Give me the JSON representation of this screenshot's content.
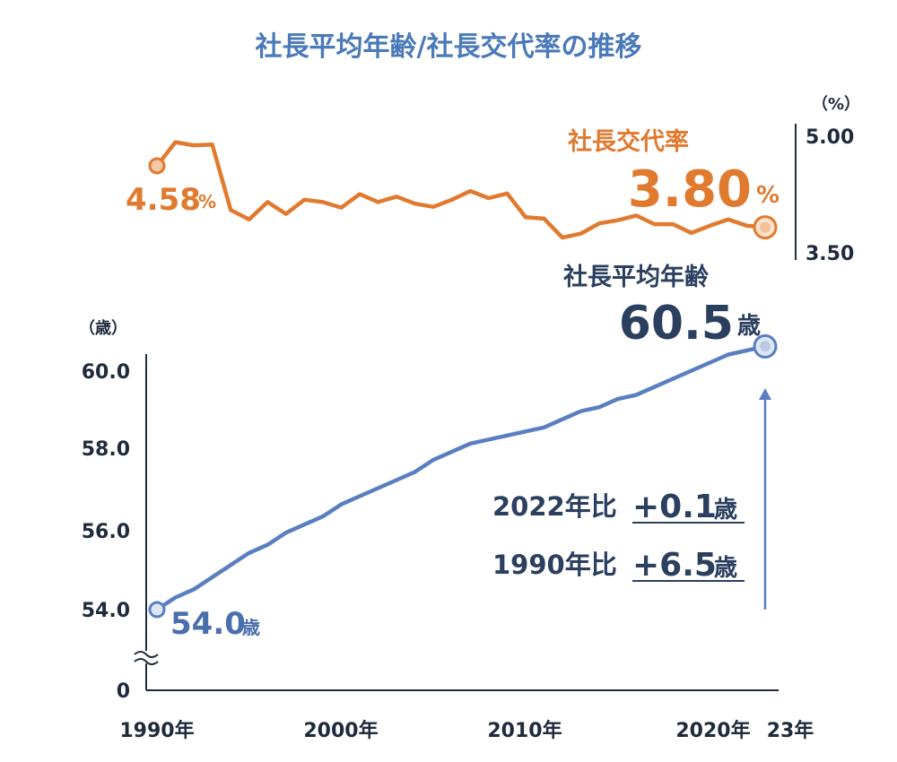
{
  "title": "社長平均年齢/社長交代率の推移",
  "colors": {
    "title": "#4a7ab8",
    "rate_line": "#e07a2f",
    "age_line": "#5a7fc0",
    "navy": "#2b3f5e",
    "axis": "#1f2a3c"
  },
  "chart_data": [
    {
      "type": "line",
      "series_label": "社長交代率",
      "unit_label": "（%）",
      "y_ticks": [
        "5.00",
        "3.50"
      ],
      "ylim": [
        3.5,
        5.0
      ],
      "start_label": {
        "value": "4.58",
        "unit": "%"
      },
      "end_label": {
        "value": "3.80",
        "unit": "%"
      },
      "x": [
        1990,
        1991,
        1992,
        1993,
        1994,
        1995,
        1996,
        1997,
        1998,
        1999,
        2000,
        2001,
        2002,
        2003,
        2004,
        2005,
        2006,
        2007,
        2008,
        2009,
        2010,
        2011,
        2012,
        2013,
        2014,
        2015,
        2016,
        2017,
        2018,
        2019,
        2020,
        2021,
        2022,
        2023
      ],
      "values": [
        4.58,
        4.88,
        4.84,
        4.85,
        4.02,
        3.9,
        4.12,
        3.97,
        4.15,
        4.12,
        4.05,
        4.22,
        4.12,
        4.19,
        4.1,
        4.06,
        4.15,
        4.26,
        4.17,
        4.23,
        3.93,
        3.91,
        3.67,
        3.72,
        3.85,
        3.89,
        3.95,
        3.84,
        3.84,
        3.73,
        3.82,
        3.9,
        3.82,
        3.8
      ]
    },
    {
      "type": "line",
      "series_label": "社長平均年齢",
      "unit_label": "（歳）",
      "y_ticks": [
        "60.0",
        "58.0",
        "56.0",
        "54.0",
        "0"
      ],
      "ylim": [
        54.0,
        60.0
      ],
      "axis_break": true,
      "start_label": {
        "value": "54.0",
        "unit": "歳"
      },
      "end_label": {
        "value": "60.5",
        "unit": "歳"
      },
      "x": [
        1990,
        1991,
        1992,
        1993,
        1994,
        1995,
        1996,
        1997,
        1998,
        1999,
        2000,
        2001,
        2002,
        2003,
        2004,
        2005,
        2006,
        2007,
        2008,
        2009,
        2010,
        2011,
        2012,
        2013,
        2014,
        2015,
        2016,
        2017,
        2018,
        2019,
        2020,
        2021,
        2022,
        2023
      ],
      "values": [
        54.0,
        54.3,
        54.5,
        54.8,
        55.1,
        55.4,
        55.6,
        55.9,
        56.1,
        56.3,
        56.6,
        56.8,
        57.0,
        57.2,
        57.4,
        57.7,
        57.9,
        58.1,
        58.2,
        58.3,
        58.4,
        58.5,
        58.7,
        58.9,
        59.0,
        59.2,
        59.3,
        59.5,
        59.7,
        59.9,
        60.1,
        60.3,
        60.4,
        60.5
      ]
    }
  ],
  "x_tick_labels": [
    "1990年",
    "2000年",
    "2010年",
    "2020年",
    "23年"
  ],
  "comparisons": [
    {
      "label": "2022年比",
      "value": "+0.1",
      "unit": "歳"
    },
    {
      "label": "1990年比",
      "value": "+6.5",
      "unit": "歳"
    }
  ]
}
